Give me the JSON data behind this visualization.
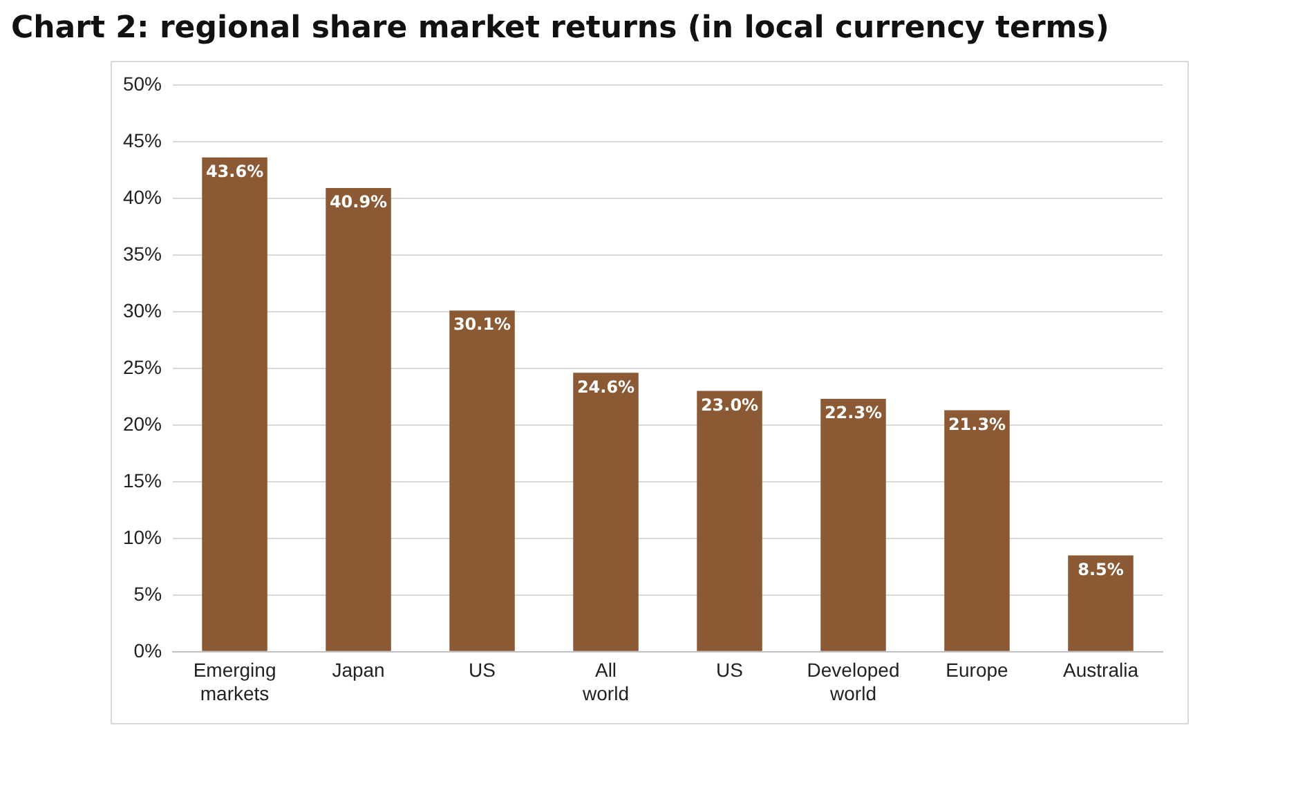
{
  "chart_data": {
    "type": "bar",
    "title": "Chart 2: regional share market returns (in local currency terms)",
    "categories": [
      "Emerging markets",
      "Japan",
      "US",
      "All world",
      "US",
      "Developed world",
      "Europe",
      "Australia"
    ],
    "values": [
      43.6,
      40.9,
      30.1,
      24.6,
      23.0,
      22.3,
      21.3,
      8.5
    ],
    "value_labels": [
      "43.6%",
      "40.9%",
      "30.1%",
      "24.6%",
      "23.0%",
      "22.3%",
      "21.3%",
      "8.5%"
    ],
    "color": "#8b5a34",
    "ylim": [
      0,
      50
    ],
    "yticks": [
      {
        "value": 0,
        "label": "0%"
      },
      {
        "value": 5,
        "label": "5%"
      },
      {
        "value": 10,
        "label": "10%"
      },
      {
        "value": 15,
        "label": "15%"
      },
      {
        "value": 20,
        "label": "20%"
      },
      {
        "value": 25,
        "label": "25%"
      },
      {
        "value": 30,
        "label": "30%"
      },
      {
        "value": 35,
        "label": "35%"
      },
      {
        "value": 40,
        "label": "40%"
      },
      {
        "value": 45,
        "label": "45%"
      },
      {
        "value": 50,
        "label": "50%"
      }
    ],
    "grid": "y",
    "legend": false
  }
}
